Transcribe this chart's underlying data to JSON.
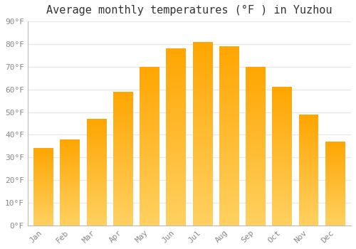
{
  "title": "Average monthly temperatures (°F ) in Yuzhou",
  "months": [
    "Jan",
    "Feb",
    "Mar",
    "Apr",
    "May",
    "Jun",
    "Jul",
    "Aug",
    "Sep",
    "Oct",
    "Nov",
    "Dec"
  ],
  "values": [
    34,
    38,
    47,
    59,
    70,
    78,
    81,
    79,
    70,
    61,
    49,
    37
  ],
  "bar_color_bottom": "#FFD060",
  "bar_color_top": "#FFA500",
  "ylim": [
    0,
    90
  ],
  "yticks": [
    0,
    10,
    20,
    30,
    40,
    50,
    60,
    70,
    80,
    90
  ],
  "ytick_labels": [
    "0°F",
    "10°F",
    "20°F",
    "30°F",
    "40°F",
    "50°F",
    "60°F",
    "70°F",
    "80°F",
    "90°F"
  ],
  "background_color": "#ffffff",
  "grid_color": "#e8e8e8",
  "title_fontsize": 11,
  "tick_fontsize": 8,
  "tick_color": "#888888",
  "bar_width": 0.75
}
